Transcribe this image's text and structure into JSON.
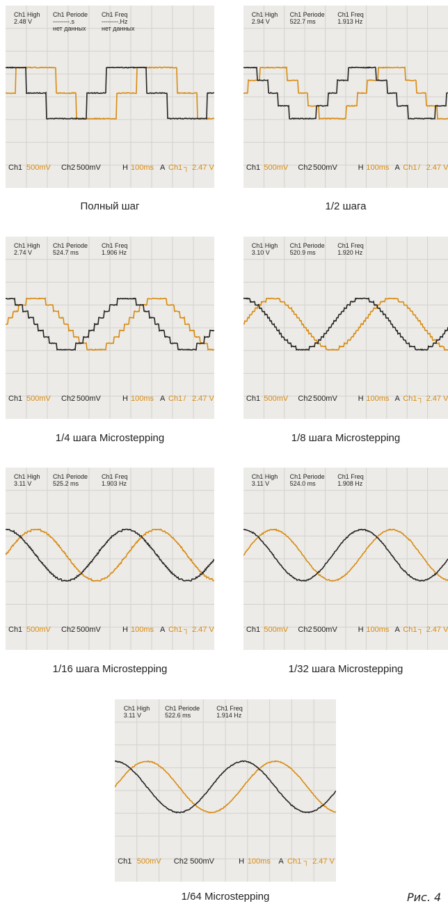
{
  "labels": {
    "high": "Ch1 High",
    "period": "Ch1 Periode",
    "freq": "Ch1 Freq",
    "ch1": "Ch1",
    "ch1_scale": "500mV",
    "ch2": "Ch2",
    "ch2_scale": "500mV",
    "h": "H",
    "h_scale": "100ms",
    "a": "A",
    "trig_ch": "Ch1",
    "trig_level": "2.47 V"
  },
  "panels": [
    {
      "high": "2.48 V",
      "period": "--------.s",
      "period_note": "нет данных",
      "freq": "--------.Hz",
      "freq_note": "нет данных",
      "trig_edge": "┐",
      "caption": "Полный шаг"
    },
    {
      "high": "2.94 V",
      "period": "522.7 ms",
      "freq": "1.913 Hz",
      "trig_edge": "/",
      "caption": "1/2 шага"
    },
    {
      "high": "2.74 V",
      "period": "524.7 ms",
      "freq": "1.906 Hz",
      "trig_edge": "/",
      "caption": "1/4 шага Microstepping"
    },
    {
      "high": "3.10 V",
      "period": "520.9 ms",
      "freq": "1.920 Hz",
      "trig_edge": "┐",
      "caption": "1/8 шага Microstepping"
    },
    {
      "high": "3.11 V",
      "period": "525.2 ms",
      "freq": "1.903 Hz",
      "trig_edge": "┐",
      "caption": "1/16 шага Microstepping"
    },
    {
      "high": "3.11 V",
      "period": "524.0 ms",
      "freq": "1.908 Hz",
      "trig_edge": "┐",
      "caption": "1/32 шага Microstepping"
    },
    {
      "high": "3.11 V",
      "period": "522.6 ms",
      "freq": "1.914 Hz",
      "trig_edge": "┐",
      "caption": "1/64 Microstepping"
    }
  ],
  "figure_label": "Рис. 4"
}
